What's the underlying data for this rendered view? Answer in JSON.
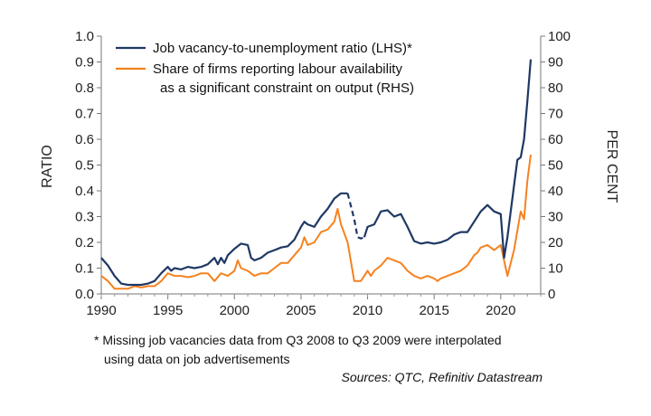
{
  "chart_data": {
    "type": "line",
    "x_label": "",
    "left_axis": {
      "label": "RATIO",
      "range": [
        0,
        1.0
      ],
      "ticks": [
        "0.0",
        "0.1",
        "0.2",
        "0.3",
        "0.4",
        "0.5",
        "0.6",
        "0.7",
        "0.8",
        "0.9",
        "1.0"
      ]
    },
    "right_axis": {
      "label": "PER CENT",
      "range": [
        0,
        100
      ],
      "ticks": [
        "0",
        "10",
        "20",
        "30",
        "40",
        "50",
        "60",
        "70",
        "80",
        "90",
        "100"
      ]
    },
    "x_range": [
      1990,
      2023
    ],
    "x_ticks": [
      "1990",
      "1995",
      "2000",
      "2005",
      "2010",
      "2015",
      "2020"
    ],
    "legend": {
      "position": "top-left",
      "entries": [
        {
          "lines": [
            "Job vacancy-to-unemployment ratio (LHS)*"
          ]
        },
        {
          "lines": [
            "Share of firms reporting labour availability",
            "as a significant constraint on output (RHS)"
          ]
        }
      ]
    },
    "series": [
      {
        "name": "Job vacancy-to-unemployment ratio (LHS)*",
        "axis": "left",
        "color": "#1f3864",
        "points": [
          [
            1990,
            0.14
          ],
          [
            1990.5,
            0.11
          ],
          [
            1991,
            0.07
          ],
          [
            1991.5,
            0.04
          ],
          [
            1992,
            0.035
          ],
          [
            1992.5,
            0.035
          ],
          [
            1993,
            0.035
          ],
          [
            1993.5,
            0.04
          ],
          [
            1994,
            0.05
          ],
          [
            1994.5,
            0.08
          ],
          [
            1995,
            0.105
          ],
          [
            1995.25,
            0.09
          ],
          [
            1995.5,
            0.1
          ],
          [
            1996,
            0.095
          ],
          [
            1996.5,
            0.105
          ],
          [
            1997,
            0.1
          ],
          [
            1997.5,
            0.105
          ],
          [
            1998,
            0.115
          ],
          [
            1998.5,
            0.14
          ],
          [
            1998.75,
            0.115
          ],
          [
            1999,
            0.14
          ],
          [
            1999.25,
            0.12
          ],
          [
            1999.5,
            0.15
          ],
          [
            2000,
            0.175
          ],
          [
            2000.5,
            0.195
          ],
          [
            2001,
            0.19
          ],
          [
            2001.25,
            0.14
          ],
          [
            2001.5,
            0.13
          ],
          [
            2002,
            0.14
          ],
          [
            2002.5,
            0.16
          ],
          [
            2003,
            0.17
          ],
          [
            2003.5,
            0.18
          ],
          [
            2004,
            0.185
          ],
          [
            2004.5,
            0.21
          ],
          [
            2005,
            0.26
          ],
          [
            2005.25,
            0.28
          ],
          [
            2005.5,
            0.27
          ],
          [
            2006,
            0.26
          ],
          [
            2006.5,
            0.3
          ],
          [
            2007,
            0.33
          ],
          [
            2007.5,
            0.37
          ],
          [
            2008,
            0.39
          ],
          [
            2008.5,
            0.39
          ]
        ],
        "interpolated": [
          [
            2008.5,
            0.39
          ],
          [
            2009,
            0.29
          ],
          [
            2009.25,
            0.22
          ],
          [
            2009.5,
            0.215
          ],
          [
            2009.75,
            0.22
          ]
        ],
        "points_after": [
          [
            2009.75,
            0.22
          ],
          [
            2010,
            0.26
          ],
          [
            2010.5,
            0.27
          ],
          [
            2011,
            0.32
          ],
          [
            2011.5,
            0.325
          ],
          [
            2012,
            0.3
          ],
          [
            2012.5,
            0.31
          ],
          [
            2013,
            0.26
          ],
          [
            2013.5,
            0.205
          ],
          [
            2014,
            0.195
          ],
          [
            2014.5,
            0.2
          ],
          [
            2015,
            0.195
          ],
          [
            2015.5,
            0.2
          ],
          [
            2016,
            0.21
          ],
          [
            2016.5,
            0.23
          ],
          [
            2017,
            0.24
          ],
          [
            2017.5,
            0.24
          ],
          [
            2018,
            0.28
          ],
          [
            2018.5,
            0.32
          ],
          [
            2019,
            0.345
          ],
          [
            2019.5,
            0.32
          ],
          [
            2020,
            0.31
          ],
          [
            2020.25,
            0.14
          ],
          [
            2020.5,
            0.22
          ],
          [
            2021,
            0.42
          ],
          [
            2021.25,
            0.52
          ],
          [
            2021.5,
            0.53
          ],
          [
            2021.75,
            0.6
          ],
          [
            2022,
            0.75
          ],
          [
            2022.25,
            0.91
          ]
        ]
      },
      {
        "name": "Share of firms reporting labour availability as a significant constraint on output (RHS)",
        "axis": "right",
        "color": "#f58220",
        "points": [
          [
            1990,
            7
          ],
          [
            1990.5,
            5
          ],
          [
            1991,
            2
          ],
          [
            1992,
            2
          ],
          [
            1992.5,
            3
          ],
          [
            1993,
            2.5
          ],
          [
            1993.5,
            3
          ],
          [
            1994,
            3
          ],
          [
            1994.5,
            5
          ],
          [
            1995,
            8
          ],
          [
            1995.5,
            7
          ],
          [
            1996,
            7
          ],
          [
            1996.5,
            6.5
          ],
          [
            1997,
            7
          ],
          [
            1997.5,
            8
          ],
          [
            1998,
            8
          ],
          [
            1998.5,
            5
          ],
          [
            1999,
            8
          ],
          [
            1999.5,
            7
          ],
          [
            2000,
            9
          ],
          [
            2000.25,
            13
          ],
          [
            2000.5,
            10
          ],
          [
            2001,
            9
          ],
          [
            2001.5,
            7
          ],
          [
            2002,
            8
          ],
          [
            2002.5,
            8
          ],
          [
            2003,
            10
          ],
          [
            2003.5,
            12
          ],
          [
            2004,
            12
          ],
          [
            2004.5,
            15
          ],
          [
            2005,
            18
          ],
          [
            2005.25,
            22
          ],
          [
            2005.5,
            19
          ],
          [
            2006,
            20
          ],
          [
            2006.5,
            24
          ],
          [
            2007,
            25
          ],
          [
            2007.5,
            28
          ],
          [
            2007.75,
            33
          ],
          [
            2008,
            27
          ],
          [
            2008.5,
            20
          ],
          [
            2009,
            5
          ],
          [
            2009.5,
            5
          ],
          [
            2010,
            9
          ],
          [
            2010.25,
            7
          ],
          [
            2010.5,
            9
          ],
          [
            2011,
            11
          ],
          [
            2011.5,
            14
          ],
          [
            2012,
            13
          ],
          [
            2012.5,
            12
          ],
          [
            2013,
            9
          ],
          [
            2013.5,
            7
          ],
          [
            2014,
            6
          ],
          [
            2014.5,
            7
          ],
          [
            2015,
            6
          ],
          [
            2015.25,
            5
          ],
          [
            2015.5,
            6
          ],
          [
            2016,
            7
          ],
          [
            2016.5,
            8
          ],
          [
            2017,
            9
          ],
          [
            2017.5,
            11
          ],
          [
            2018,
            15
          ],
          [
            2018.25,
            16
          ],
          [
            2018.5,
            18
          ],
          [
            2019,
            19
          ],
          [
            2019.5,
            17
          ],
          [
            2020,
            19
          ],
          [
            2020.25,
            13
          ],
          [
            2020.5,
            7
          ],
          [
            2021,
            17
          ],
          [
            2021.5,
            32
          ],
          [
            2021.75,
            29
          ],
          [
            2022,
            44
          ],
          [
            2022.25,
            54
          ]
        ]
      }
    ],
    "footnote_lines": [
      "* Missing job vacancies data from Q3 2008 to Q3 2009 were interpolated",
      "using data on job advertisements"
    ],
    "source": "Sources: QTC, Refinitiv Datastream"
  }
}
